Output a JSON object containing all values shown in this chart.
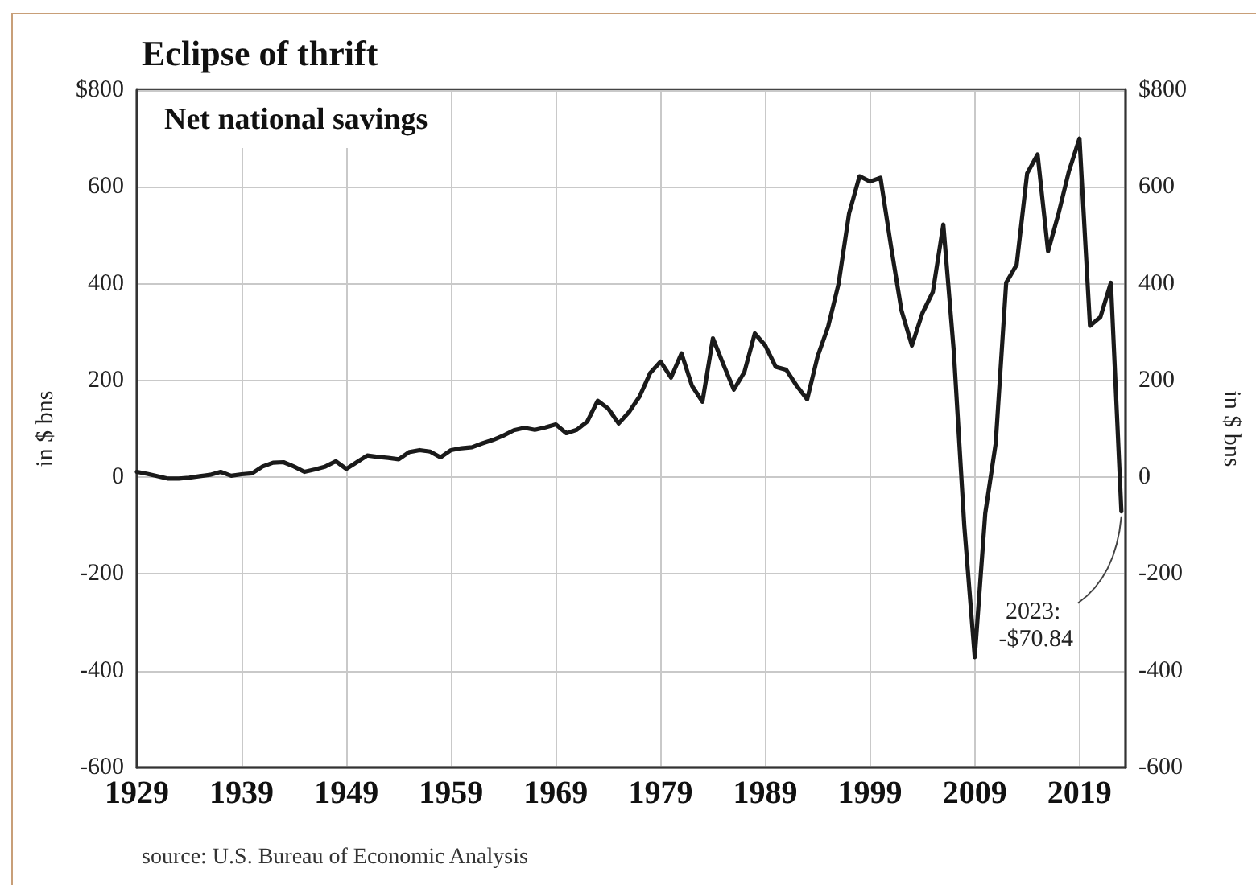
{
  "chart_data": {
    "type": "line",
    "title": "Eclipse of thrift",
    "subtitle": "Net national savings",
    "ylabel": "in $ bns",
    "y2label": "in $ bns",
    "annotations": [
      {
        "text": "2023: -$70.84",
        "x": 2023,
        "y": -70.84
      },
      "source: U.S. Bureau of Economic Analysis"
    ],
    "x": [
      1929,
      1930,
      1931,
      1932,
      1933,
      1934,
      1935,
      1936,
      1937,
      1938,
      1939,
      1940,
      1941,
      1942,
      1943,
      1944,
      1945,
      1946,
      1947,
      1948,
      1949,
      1950,
      1951,
      1952,
      1953,
      1954,
      1955,
      1956,
      1957,
      1958,
      1959,
      1960,
      1961,
      1962,
      1963,
      1964,
      1965,
      1966,
      1967,
      1968,
      1969,
      1970,
      1971,
      1972,
      1973,
      1974,
      1975,
      1976,
      1977,
      1978,
      1979,
      1980,
      1981,
      1982,
      1983,
      1984,
      1985,
      1986,
      1987,
      1988,
      1989,
      1990,
      1991,
      1992,
      1993,
      1994,
      1995,
      1996,
      1997,
      1998,
      1999,
      2000,
      2001,
      2002,
      2003,
      2004,
      2005,
      2006,
      2007,
      2008,
      2009,
      2010,
      2011,
      2012,
      2013,
      2014,
      2015,
      2016,
      2017,
      2018,
      2019,
      2020,
      2021,
      2022,
      2023
    ],
    "values": [
      11,
      7,
      2,
      -3,
      -3,
      -1,
      2,
      5,
      11,
      3,
      6,
      8,
      22,
      30,
      31,
      22,
      11,
      16,
      22,
      33,
      17,
      31,
      45,
      42,
      40,
      37,
      52,
      56,
      53,
      41,
      56,
      60,
      62,
      70,
      77,
      86,
      97,
      102,
      98,
      103,
      109,
      91,
      98,
      115,
      158,
      142,
      111,
      135,
      167,
      215,
      239,
      206,
      256,
      189,
      156,
      287,
      233,
      181,
      217,
      297,
      272,
      228,
      222,
      189,
      161,
      250,
      311,
      400,
      545,
      622,
      611,
      619,
      478,
      345,
      272,
      339,
      383,
      522,
      260,
      -100,
      -372,
      -75,
      70,
      402,
      439,
      628,
      667,
      467,
      545,
      633,
      700,
      313,
      331,
      402,
      -70.84
    ],
    "color": "#1a1a1a",
    "line_style": "solid",
    "xlim": [
      1929,
      2023.4
    ],
    "xticks": [
      1929,
      1939,
      1949,
      1959,
      1969,
      1979,
      1989,
      1999,
      2009,
      2019
    ],
    "ylim": [
      -600,
      800
    ],
    "yticks": [
      {
        "value": 800,
        "label": "$800"
      },
      600,
      400,
      200,
      0,
      -200,
      -400,
      -600
    ],
    "y2lim": [
      -600,
      800
    ],
    "y2ticks": [
      {
        "value": 800,
        "label": "$800"
      },
      600,
      400,
      200,
      0,
      -200,
      -400,
      -600
    ],
    "grid": true
  }
}
